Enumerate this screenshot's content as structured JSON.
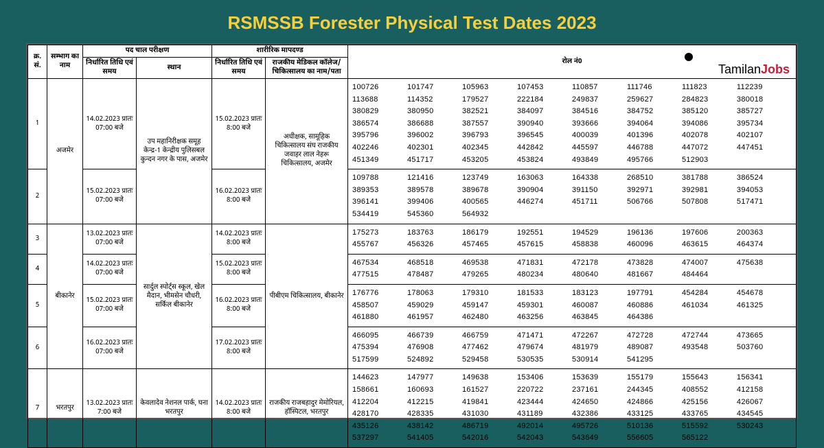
{
  "title": "RSMSSB Forester Physical Test Dates 2023",
  "watermark": {
    "t1": "Tamilan",
    "t2": "Jobs"
  },
  "header": {
    "col1": "क्र. सं.",
    "col2": "सम्भाग का नाम",
    "col3": "पद चाल परीक्षण",
    "col3a": "निर्धारित तिथि एवं समय",
    "col3b": "स्थान",
    "col4": "शारीरिक मापदण्ड",
    "col4a": "निर्धारित तिथि एवं समय",
    "col4b": "राजकीय मेडिकल कॉलेज/चिकित्सालय का नाम/पता",
    "col5": "रोल नं0"
  },
  "rows": [
    {
      "no": "1",
      "zone": "अजमेर",
      "d1": "14.02.2023 प्रातः 07:00 बजे",
      "p1": "उप महानिरीक्षक समूह केन्द्र-1 केन्द्रीय पुलिसबल कुन्दन नगर के पास, अजमेर",
      "d2": "15.02.2023 प्रातः 8:00 बजे",
      "p2": "अधीक्षक, सामूहिक चिकित्सालय संघ राजकीय जवाहर लाल नेहरू चिकित्सालय, अजमेर",
      "roll": "100726 101747 105963 107453 110857 111746 111823 112239 113688 114352 179527 222184 249837 259627 284823 380018 380829 380950 382521 384097 384516 384752 385120 385727 386574 386688 387557 390940 393666 394064 394086 395734 395796 396002 396793 396545 400039 401396 402078 402107 402246 402301 402345 442842 445597 446788 447072 447451 451349 451717 453205 453824 493849 495766 512903",
      "zspan": 2,
      "p1span": 2,
      "p2span": 2
    },
    {
      "no": "2",
      "d1": "15.02.2023 प्रातः 07:00 बजे",
      "d2": "16.02.2023 प्रातः 8:00 बजे",
      "roll": "109788 121416 123749 163063 164338 268510 381788 386524 389353 389578 389678 390904 391150 392971 392981 394053 396141 399406 400565 446274 451711 506766 507808 517471 534419 545360 564932"
    },
    {
      "no": "3",
      "zone": "बीकानेर",
      "d1": "13.02.2023 प्रातः 07:00 बजे",
      "p1": "सार्दुल स्पोर्ट्स स्कूल, खेल मैदान, भीमसेन चौधरी, सर्किल बीकानेर",
      "d2": "14.02.2023 प्रातः 8:00 बजे",
      "p2": "पीबीएम चिकित्सालय, बीकानेर",
      "roll": "175273 183763 186179 192551 194529 196136 197606 200363 455767 456326 457465 457615 458838 460096 463615 464374",
      "zspan": 4,
      "p1span": 4,
      "p2span": 4
    },
    {
      "no": "4",
      "d1": "14.02.2023 प्रातः 07:00 बजे",
      "d2": "15.02.2023 प्रातः 8:00 बजे",
      "roll": "467534 468518 469538 471831 472178 473828 474007 475638 477515 478487 479265 480234 480640 481667 484464"
    },
    {
      "no": "5",
      "d1": "15.02.2023 प्रातः 07:00 बजे",
      "d2": "16.02.2023 प्रातः 8:00 बजे",
      "roll": "176776 178063 179310 181533 183123 197791 454284 454678 458507 459029 459147 459301 460087 460886 461034 461325 461880 461957 462480 463256 463845 464386"
    },
    {
      "no": "6",
      "d1": "16.02.2023 प्रातः 07:00 बजे",
      "d2": "17.02.2023 प्रातः 8:00 बजे",
      "roll": "466095 466739 466759 471471 472267 472728 472744 473665 475394 476908 477462 479674 481979 489087 493548 503760 517599 524892 529458 530535 530914 541295"
    },
    {
      "no": "7",
      "zone": "भरतपुर",
      "d1": "13.02.2023 प्रातः 7:00 बजे",
      "p1": "केवलादेव नेशनल पार्क, घना भरतपुर",
      "d2": "14.02.2023 प्रातः 8:00 बजे",
      "p2": "राजकीय राजबहादुर मेमोरियल, हॉस्पिटल, भरतपुर",
      "roll": "144623 147977 149638 153406 153639 155179 155643 156341 158661 160693 161527 220722 237161 244345 408552 412158 412204 412215 419841 423444 424650 424866 425156 426067 428170 428335 431030 431189 432386 433125 433765 434545 435126 438142 486719 492014 495726 510136 515592 530243 537297 541405 542016 542043 543649 556605 565122",
      "zspan": 1,
      "p1span": 1,
      "p2span": 1
    }
  ]
}
